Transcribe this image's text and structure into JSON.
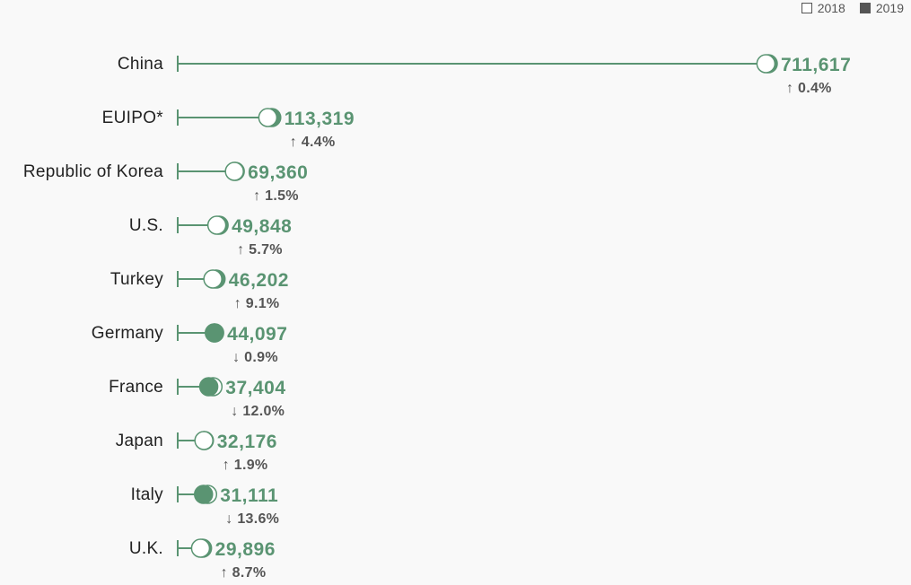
{
  "legend": {
    "y2018": "2018",
    "y2019": "2019"
  },
  "colors": {
    "line": "#5a9472",
    "dot2019": "#5a9472",
    "value": "#5a9472",
    "change": "#555555",
    "label": "#222222",
    "background": "#f9f9f9"
  },
  "chart_data": {
    "type": "dot",
    "series": [
      {
        "name": "2018"
      },
      {
        "name": "2019"
      }
    ],
    "xlim": [
      0,
      720000
    ],
    "rows": [
      {
        "label": "China",
        "value2019": 711617,
        "value2018": 708762,
        "change": "0.4%",
        "direction": "up"
      },
      {
        "label": "EUIPO*",
        "value2019": 113319,
        "value2018": 108544,
        "change": "4.4%",
        "direction": "up"
      },
      {
        "label": "Republic of Korea",
        "value2019": 69360,
        "value2018": 68334,
        "change": "1.5%",
        "direction": "up"
      },
      {
        "label": "U.S.",
        "value2019": 49848,
        "value2018": 47161,
        "change": "5.7%",
        "direction": "up"
      },
      {
        "label": "Turkey",
        "value2019": 46202,
        "value2018": 42350,
        "change": "9.1%",
        "direction": "up"
      },
      {
        "label": "Germany",
        "value2019": 44097,
        "value2018": 44497,
        "change": "0.9%",
        "direction": "down"
      },
      {
        "label": "France",
        "value2019": 37404,
        "value2018": 42504,
        "change": "12.0%",
        "direction": "down"
      },
      {
        "label": "Japan",
        "value2019": 32176,
        "value2018": 31576,
        "change": "1.9%",
        "direction": "up"
      },
      {
        "label": "Italy",
        "value2019": 31111,
        "value2018": 36003,
        "change": "13.6%",
        "direction": "down"
      },
      {
        "label": "U.K.",
        "value2019": 29896,
        "value2018": 27505,
        "change": "8.7%",
        "direction": "up"
      }
    ]
  }
}
